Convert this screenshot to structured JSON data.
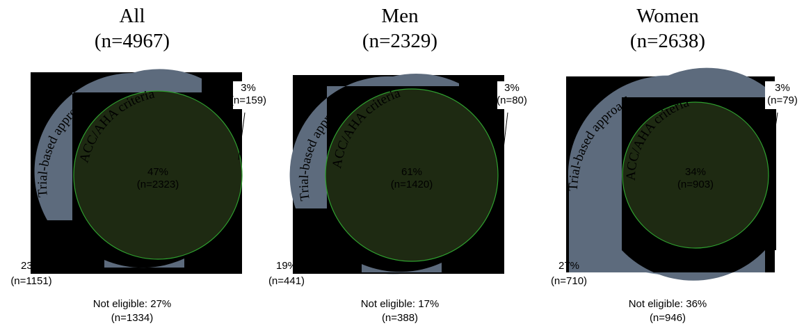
{
  "colors": {
    "trial_fill": "#5d6b7d",
    "trial_stroke": "#8fa0b0",
    "acc_fill": "#1e2a12",
    "acc_stroke": "#2fa02f",
    "occluder": "#000000"
  },
  "labels": {
    "trial": "Trial-based approach",
    "acc": "ACC/AHA criteria"
  },
  "panels": [
    {
      "title": "All",
      "n": "(n=4967)",
      "center_pct": "47%",
      "center_n": "(n=2323)",
      "acc_only_pct": "3%",
      "acc_only_n": "(n=159)",
      "trial_only_pct": "23%",
      "trial_only_n": "(n=1151)",
      "not_eligible": "Not eligible: 27%",
      "not_eligible_n": "(n=1334)"
    },
    {
      "title": "Men",
      "n": "(n=2329)",
      "center_pct": "61%",
      "center_n": "(n=1420)",
      "acc_only_pct": "3%",
      "acc_only_n": "(n=80)",
      "trial_only_pct": "19%",
      "trial_only_n": "(n=441)",
      "not_eligible": "Not eligible: 17%",
      "not_eligible_n": "(n=388)"
    },
    {
      "title": "Women",
      "n": "(n=2638)",
      "center_pct": "34%",
      "center_n": "(n=903)",
      "acc_only_pct": "3%",
      "acc_only_n": "(n=79)",
      "trial_only_pct": "27%",
      "trial_only_n": "(n=710)",
      "not_eligible": "Not eligible: 36%",
      "not_eligible_n": "(n=946)"
    }
  ]
}
